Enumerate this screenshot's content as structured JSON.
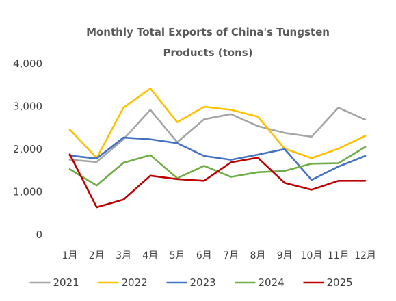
{
  "chart_data": {
    "type": "line",
    "title": "Monthly Total Exports of China's Tungsten Products (tons)",
    "title_lines": [
      "Monthly Total Exports of China's Tungsten",
      "Products (tons)"
    ],
    "xlabel": "",
    "ylabel": "",
    "categories": [
      "1月",
      "2月",
      "3月",
      "4月",
      "5月",
      "6月",
      "7月",
      "8月",
      "9月",
      "10月",
      "11月",
      "12月"
    ],
    "ylim": [
      0,
      4000
    ],
    "yticks": [
      0,
      1000,
      2000,
      3000,
      4000
    ],
    "ytick_labels": [
      "0",
      "1,000",
      "2,000",
      "3,000",
      "4,000"
    ],
    "grid": false,
    "legend_position": "bottom",
    "series": [
      {
        "name": "2021",
        "color": "#A5A5A5",
        "values": [
          1750,
          1700,
          2230,
          2920,
          2160,
          2700,
          2820,
          2540,
          2380,
          2290,
          2970,
          2690
        ]
      },
      {
        "name": "2022",
        "color": "#FFC000",
        "values": [
          2460,
          1790,
          2970,
          3420,
          2630,
          2990,
          2920,
          2760,
          2010,
          1790,
          2010,
          2310
        ]
      },
      {
        "name": "2023",
        "color": "#4472C4",
        "values": [
          1850,
          1780,
          2270,
          2230,
          2140,
          1840,
          1750,
          1870,
          2000,
          1280,
          1590,
          1840
        ]
      },
      {
        "name": "2024",
        "color": "#70AD47",
        "values": [
          1530,
          1150,
          1680,
          1860,
          1320,
          1610,
          1350,
          1460,
          1490,
          1660,
          1670,
          2050
        ]
      },
      {
        "name": "2025",
        "color": "#C00000",
        "values": [
          1880,
          640,
          820,
          1380,
          1300,
          1260,
          1690,
          1800,
          1210,
          1050,
          1260,
          1260
        ]
      }
    ]
  }
}
